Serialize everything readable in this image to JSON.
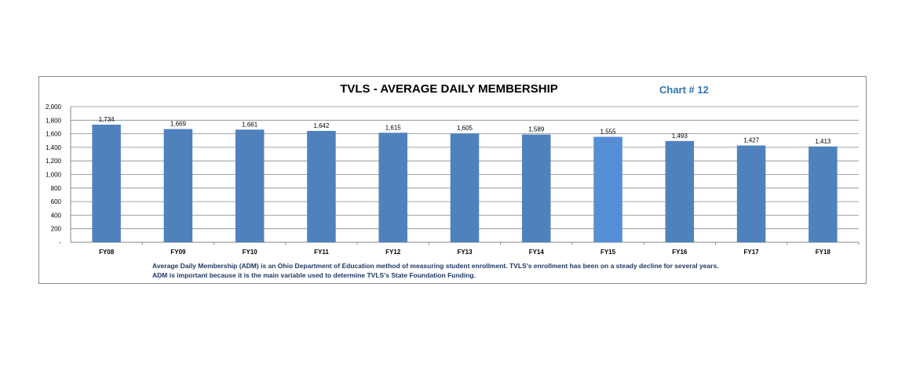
{
  "chart_data": {
    "type": "bar",
    "title": "TVLS - AVERAGE DAILY MEMBERSHIP",
    "chart_number": "Chart # 12",
    "categories": [
      "FY08",
      "FY09",
      "FY10",
      "FY11",
      "FY12",
      "FY13",
      "FY14",
      "FY15",
      "FY16",
      "FY17",
      "FY18"
    ],
    "values": [
      1734,
      1669,
      1661,
      1642,
      1615,
      1605,
      1589,
      1555,
      1493,
      1427,
      1413
    ],
    "value_labels": [
      "1,734",
      "1,669",
      "1,661",
      "1,642",
      "1,615",
      "1,605",
      "1,589",
      "1,555",
      "1,493",
      "1,427",
      "1,413"
    ],
    "ylim": [
      0,
      2000
    ],
    "yticks": [
      0,
      200,
      400,
      600,
      800,
      1000,
      1200,
      1400,
      1600,
      1800,
      2000
    ],
    "ytick_labels": [
      "-",
      "200",
      "400",
      "600",
      "800",
      "1,000",
      "1,200",
      "1,400",
      "1,600",
      "1,800",
      "2,000"
    ],
    "grid": true,
    "highlight_index": 7,
    "colors": {
      "bar": "#4f81bd",
      "bar_highlight": "#558ed5",
      "note": "#1f3864",
      "chart_number": "#2e75b6"
    }
  },
  "note_lines": [
    "Average Daily Membership (ADM) is an Ohio Department of Education method of measuring student enrollment.  TVLS's enrollment  has been on a  steady decline for several years.",
    "ADM is important because it is the main variable used to determine TVLS's State Foundation Funding."
  ]
}
